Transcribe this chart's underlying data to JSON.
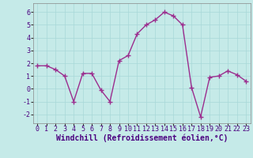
{
  "x": [
    0,
    1,
    2,
    3,
    4,
    5,
    6,
    7,
    8,
    9,
    10,
    11,
    12,
    13,
    14,
    15,
    16,
    17,
    18,
    19,
    20,
    21,
    22,
    23
  ],
  "y": [
    1.8,
    1.8,
    1.5,
    1.0,
    -1.0,
    1.2,
    1.2,
    -0.1,
    -1.0,
    2.2,
    2.6,
    4.3,
    5.0,
    5.4,
    6.0,
    5.7,
    5.0,
    0.1,
    -2.2,
    0.9,
    1.0,
    1.4,
    1.1,
    0.6
  ],
  "line_color": "#9B2D8E",
  "marker_color": "#9B2D8E",
  "bg_color": "#C5EAE8",
  "grid_color": "#A8D8D8",
  "xlabel": "Windchill (Refroidissement éolien,°C)",
  "xlim": [
    -0.5,
    23.5
  ],
  "ylim": [
    -2.7,
    6.7
  ],
  "yticks": [
    -2,
    -1,
    0,
    1,
    2,
    3,
    4,
    5,
    6
  ],
  "xticks": [
    0,
    1,
    2,
    3,
    4,
    5,
    6,
    7,
    8,
    9,
    10,
    11,
    12,
    13,
    14,
    15,
    16,
    17,
    18,
    19,
    20,
    21,
    22,
    23
  ],
  "tick_fontsize": 6.0,
  "label_fontsize": 7.0,
  "marker_size": 2.2,
  "line_width": 1.0
}
